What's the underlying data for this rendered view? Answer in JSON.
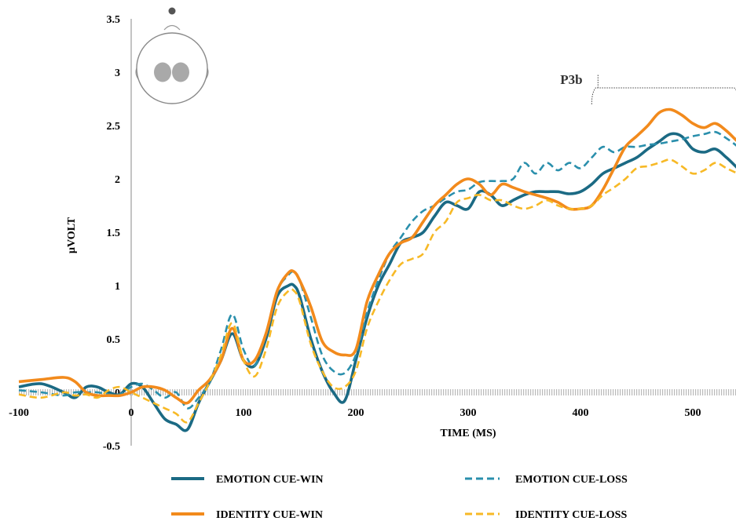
{
  "chart_data": {
    "type": "line",
    "xlabel": "TIME (MS)",
    "ylabel": "µVOLT",
    "xlim": [
      -100,
      545
    ],
    "ylim": [
      -0.5,
      3.5
    ],
    "x_ticks": [
      "-100",
      "0",
      "100",
      "200",
      "300",
      "400",
      "500"
    ],
    "y_ticks": [
      "-0.5",
      "0",
      "0.5",
      "1",
      "1.5",
      "2",
      "2.5",
      "3",
      "3.5"
    ],
    "annotation": {
      "label": "P3b",
      "x_start": 410,
      "x_end": 540
    },
    "legend_position": "bottom",
    "grid": false,
    "x": [
      -100,
      -80,
      -60,
      -50,
      -40,
      -30,
      -20,
      -10,
      0,
      10,
      20,
      30,
      40,
      50,
      60,
      70,
      80,
      90,
      100,
      110,
      120,
      130,
      140,
      145,
      150,
      160,
      170,
      180,
      190,
      200,
      210,
      220,
      230,
      240,
      250,
      260,
      270,
      280,
      290,
      300,
      310,
      320,
      330,
      340,
      350,
      360,
      370,
      380,
      390,
      400,
      410,
      420,
      430,
      440,
      450,
      460,
      470,
      480,
      490,
      500,
      510,
      520,
      530,
      540,
      545
    ],
    "series": [
      {
        "name": "EMOTION CUE-WIN",
        "color": "#1b6a84",
        "dash": "solid",
        "values": [
          0.05,
          0.08,
          0.0,
          -0.05,
          0.05,
          0.05,
          0.0,
          -0.02,
          0.08,
          0.05,
          -0.1,
          -0.25,
          -0.3,
          -0.35,
          -0.1,
          0.1,
          0.3,
          0.55,
          0.3,
          0.25,
          0.5,
          0.9,
          1.0,
          1.0,
          0.9,
          0.5,
          0.2,
          0.0,
          -0.08,
          0.3,
          0.7,
          1.0,
          1.2,
          1.4,
          1.45,
          1.5,
          1.65,
          1.78,
          1.75,
          1.72,
          1.88,
          1.85,
          1.75,
          1.8,
          1.85,
          1.88,
          1.88,
          1.88,
          1.86,
          1.88,
          1.95,
          2.05,
          2.1,
          2.15,
          2.2,
          2.28,
          2.35,
          2.42,
          2.4,
          2.28,
          2.25,
          2.28,
          2.2,
          2.1,
          2.06
        ]
      },
      {
        "name": "EMOTION CUE-LOSS",
        "color": "#2a8fac",
        "dash": "dashed",
        "values": [
          0.02,
          0.0,
          -0.03,
          0.0,
          0.0,
          0.0,
          -0.02,
          -0.02,
          0.05,
          0.08,
          0.02,
          -0.05,
          0.0,
          -0.15,
          -0.05,
          0.1,
          0.4,
          0.73,
          0.4,
          0.25,
          0.55,
          0.95,
          1.1,
          1.13,
          1.05,
          0.7,
          0.35,
          0.2,
          0.18,
          0.35,
          0.75,
          1.05,
          1.3,
          1.45,
          1.6,
          1.7,
          1.75,
          1.82,
          1.88,
          1.9,
          1.97,
          1.98,
          1.98,
          2.0,
          2.15,
          2.05,
          2.15,
          2.08,
          2.15,
          2.1,
          2.2,
          2.3,
          2.25,
          2.3,
          2.3,
          2.32,
          2.33,
          2.35,
          2.37,
          2.4,
          2.42,
          2.44,
          2.38,
          2.3,
          2.22
        ]
      },
      {
        "name": "IDENTITY CUE-WIN",
        "color": "#f28a1c",
        "dash": "solid",
        "values": [
          0.1,
          0.12,
          0.14,
          0.1,
          0.0,
          -0.03,
          -0.03,
          -0.03,
          0.0,
          0.05,
          0.05,
          0.02,
          -0.05,
          -0.1,
          0.02,
          0.12,
          0.3,
          0.6,
          0.3,
          0.3,
          0.55,
          0.95,
          1.12,
          1.13,
          1.05,
          0.8,
          0.48,
          0.38,
          0.35,
          0.4,
          0.85,
          1.1,
          1.3,
          1.4,
          1.45,
          1.6,
          1.75,
          1.85,
          1.95,
          2.0,
          1.95,
          1.85,
          1.95,
          1.92,
          1.88,
          1.85,
          1.82,
          1.78,
          1.72,
          1.72,
          1.75,
          1.9,
          2.1,
          2.3,
          2.4,
          2.5,
          2.62,
          2.65,
          2.6,
          2.52,
          2.48,
          2.52,
          2.45,
          2.35,
          2.32
        ]
      },
      {
        "name": "IDENTITY CUE-LOSS",
        "color": "#f7b926",
        "dash": "dashed",
        "values": [
          -0.02,
          -0.05,
          0.0,
          -0.03,
          -0.02,
          -0.05,
          0.02,
          0.05,
          0.0,
          -0.05,
          -0.1,
          -0.15,
          -0.2,
          -0.28,
          -0.1,
          0.1,
          0.35,
          0.65,
          0.3,
          0.15,
          0.4,
          0.8,
          0.95,
          0.95,
          0.85,
          0.45,
          0.2,
          0.05,
          0.05,
          0.2,
          0.6,
          0.85,
          1.05,
          1.2,
          1.25,
          1.3,
          1.5,
          1.6,
          1.78,
          1.82,
          1.85,
          1.8,
          1.8,
          1.75,
          1.72,
          1.75,
          1.8,
          1.75,
          1.72,
          1.72,
          1.75,
          1.85,
          1.92,
          2.0,
          2.1,
          2.12,
          2.15,
          2.18,
          2.12,
          2.05,
          2.08,
          2.15,
          2.1,
          2.05,
          2.03
        ]
      }
    ]
  }
}
